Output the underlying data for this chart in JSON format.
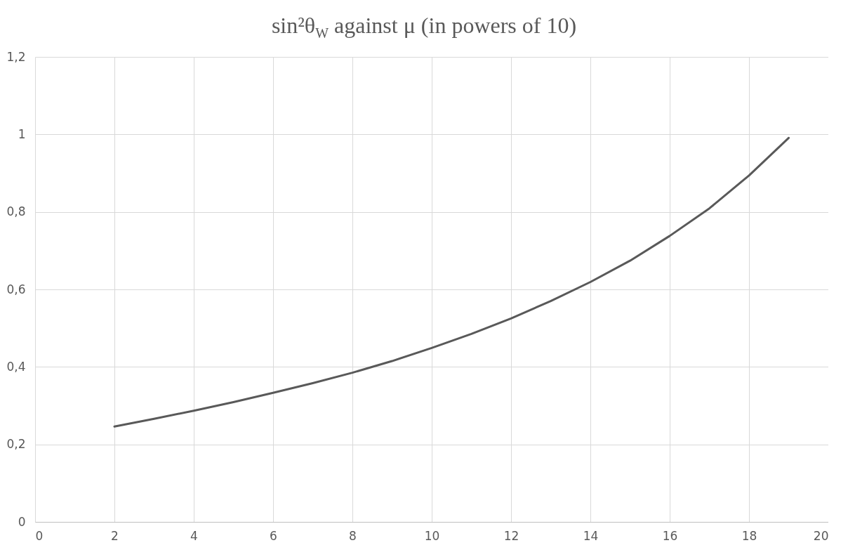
{
  "chart_data": {
    "type": "line",
    "title": "sin²θ$_{W}$ against μ (in powers of 10)",
    "x": [
      2,
      3,
      4,
      5,
      6,
      7,
      8,
      9,
      10,
      11,
      12,
      13,
      14,
      15,
      16,
      17,
      18,
      19
    ],
    "series": [
      {
        "color": "#595959",
        "values": [
          0.246,
          0.266,
          0.287,
          0.309,
          0.333,
          0.358,
          0.385,
          0.415,
          0.449,
          0.485,
          0.525,
          0.57,
          0.619,
          0.674,
          0.738,
          0.809,
          0.894,
          0.991
        ]
      }
    ],
    "xlim": [
      0,
      20
    ],
    "xticks": [
      0,
      2,
      4,
      6,
      8,
      10,
      12,
      14,
      16,
      18,
      20
    ],
    "ylim": [
      0,
      1.2
    ],
    "yticks": [
      0,
      {
        "value": 0.2,
        "label": "0,2"
      },
      {
        "value": 0.4,
        "label": "0,4"
      },
      {
        "value": 0.6,
        "label": "0,6"
      },
      {
        "value": 0.8,
        "label": "0,8"
      },
      1,
      {
        "value": 1.2,
        "label": "1,2"
      }
    ],
    "grid": true,
    "line_style": "solid"
  }
}
